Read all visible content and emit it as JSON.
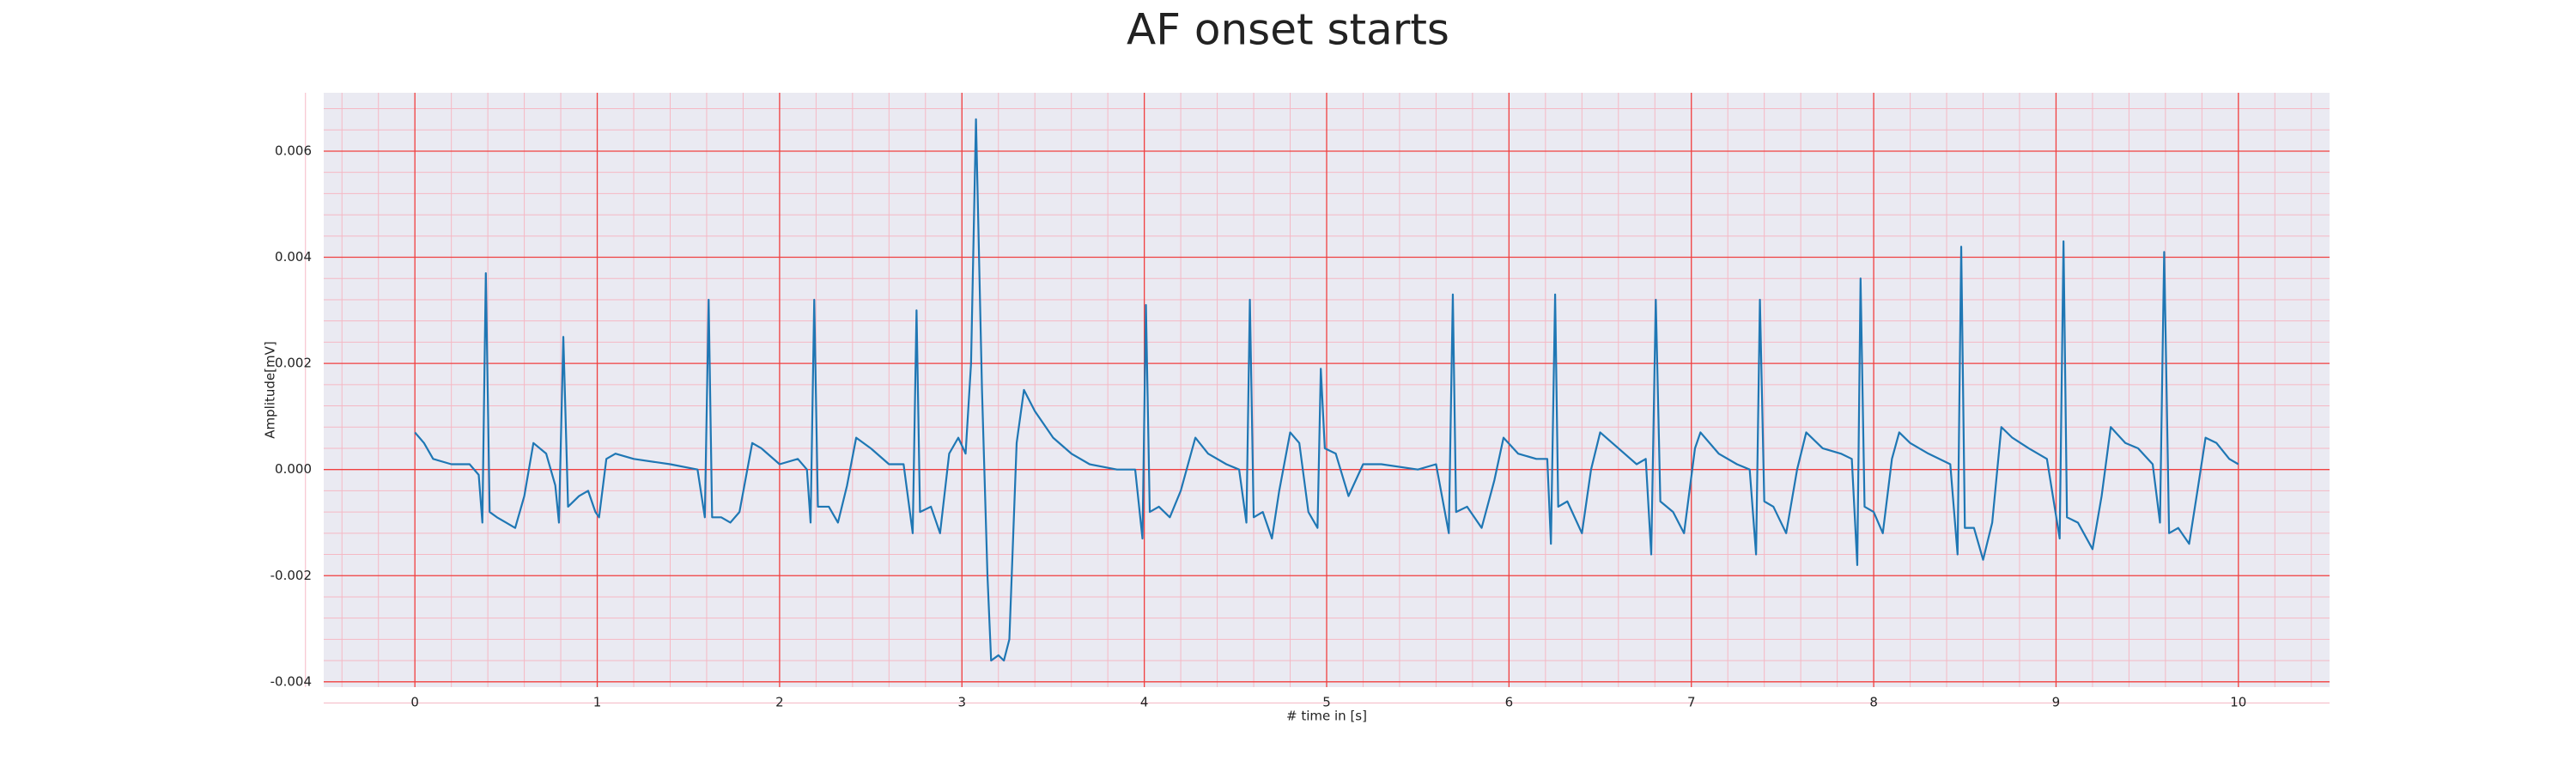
{
  "chart_data": {
    "type": "line",
    "title": "AF onset starts",
    "xlabel": "# time in [s]",
    "ylabel": "Amplitude[mV]",
    "xlim": [
      -0.5,
      10.5
    ],
    "ylim": [
      -0.0041,
      0.0071
    ],
    "xticks": [
      0,
      1,
      2,
      3,
      4,
      5,
      6,
      7,
      8,
      9,
      10
    ],
    "yticks": [
      {
        "value": -0.004,
        "label": "-0.004"
      },
      {
        "value": -0.002,
        "label": "-0.002"
      },
      {
        "value": 0,
        "label": "0.000"
      },
      {
        "value": 0.002,
        "label": "0.002"
      },
      {
        "value": 0.004,
        "label": "0.004"
      },
      {
        "value": 0.006,
        "label": "0.006"
      }
    ],
    "grid": true,
    "minor_grid": true,
    "grid_color": "#f04040",
    "minor_grid_color": "#f5b8c4",
    "background": "#eaeaf2",
    "x": [
      0,
      0.05,
      0.1,
      0.2,
      0.3,
      0.35,
      0.37,
      0.389,
      0.41,
      0.45,
      0.5,
      0.55,
      0.6,
      0.65,
      0.72,
      0.77,
      0.79,
      0.814,
      0.84,
      0.9,
      0.95,
      0.99,
      1.01,
      1.05,
      1.1,
      1.2,
      1.4,
      1.55,
      1.59,
      1.611,
      1.63,
      1.68,
      1.73,
      1.78,
      1.85,
      1.9,
      2.0,
      2.1,
      2.15,
      2.17,
      2.19,
      2.21,
      2.27,
      2.32,
      2.37,
      2.42,
      2.5,
      2.6,
      2.68,
      2.73,
      2.751,
      2.77,
      2.83,
      2.88,
      2.93,
      2.98,
      3.02,
      3.05,
      3.077,
      3.11,
      3.14,
      3.16,
      3.2,
      3.23,
      3.26,
      3.3,
      3.34,
      3.4,
      3.5,
      3.6,
      3.7,
      3.85,
      3.95,
      3.99,
      4.009,
      4.03,
      4.08,
      4.14,
      4.2,
      4.28,
      4.35,
      4.45,
      4.52,
      4.56,
      4.579,
      4.6,
      4.65,
      4.7,
      4.74,
      4.8,
      4.85,
      4.9,
      4.95,
      4.968,
      4.99,
      5.05,
      5.12,
      5.2,
      5.3,
      5.5,
      5.6,
      5.67,
      5.692,
      5.71,
      5.77,
      5.85,
      5.92,
      5.97,
      6.05,
      6.15,
      6.21,
      6.23,
      6.253,
      6.27,
      6.32,
      6.4,
      6.45,
      6.5,
      6.6,
      6.7,
      6.75,
      6.78,
      6.805,
      6.83,
      6.9,
      6.96,
      7.02,
      7.05,
      7.15,
      7.25,
      7.32,
      7.355,
      7.376,
      7.4,
      7.45,
      7.52,
      7.58,
      7.63,
      7.72,
      7.82,
      7.88,
      7.91,
      7.928,
      7.95,
      8.0,
      8.05,
      8.1,
      8.14,
      8.2,
      8.3,
      8.42,
      8.46,
      8.48,
      8.5,
      8.55,
      8.6,
      8.65,
      8.7,
      8.76,
      8.85,
      8.95,
      9.02,
      9.041,
      9.06,
      9.12,
      9.2,
      9.25,
      9.3,
      9.38,
      9.45,
      9.53,
      9.57,
      9.593,
      9.62,
      9.67,
      9.73,
      9.78,
      9.82,
      9.88,
      9.95,
      10.0
    ],
    "series": [
      {
        "color": "#1f77b4",
        "values": [
          0.0007,
          0.0005,
          0.0002,
          0.0001,
          0.0001,
          -0.0001,
          -0.001,
          0.0037,
          -0.0008,
          -0.0009,
          -0.001,
          -0.0011,
          -0.0005,
          0.0005,
          0.0003,
          -0.0003,
          -0.001,
          0.0025,
          -0.0007,
          -0.0005,
          -0.0004,
          -0.0008,
          -0.0009,
          0.0002,
          0.0003,
          0.0002,
          0.0001,
          0,
          -0.0009,
          0.0032,
          -0.0009,
          -0.0009,
          -0.001,
          -0.0008,
          0.0005,
          0.0004,
          0.0001,
          0.0002,
          0,
          -0.001,
          0.0032,
          -0.0007,
          -0.0007,
          -0.001,
          -0.0003,
          0.0006,
          0.0004,
          0.0001,
          0.0001,
          -0.0012,
          0.003,
          -0.0008,
          -0.0007,
          -0.0012,
          0.0003,
          0.0006,
          0.0003,
          0.002,
          0.0066,
          0.0015,
          -0.002,
          -0.0036,
          -0.0035,
          -0.0036,
          -0.0032,
          0.0005,
          0.0015,
          0.0011,
          0.0006,
          0.0003,
          0.0001,
          0,
          0,
          -0.0013,
          0.0031,
          -0.0008,
          -0.0007,
          -0.0009,
          -0.0004,
          0.0006,
          0.0003,
          0.0001,
          0,
          -0.001,
          0.0032,
          -0.0009,
          -0.0008,
          -0.0013,
          -0.0004,
          0.0007,
          0.0005,
          -0.0008,
          -0.0011,
          0.0019,
          0.0004,
          0.0003,
          -0.0005,
          0.0001,
          0.0001,
          0,
          0.0001,
          -0.0012,
          0.0033,
          -0.0008,
          -0.0007,
          -0.0011,
          -0.0002,
          0.0006,
          0.0003,
          0.0002,
          0.0002,
          -0.0014,
          0.0033,
          -0.0007,
          -0.0006,
          -0.0012,
          0,
          0.0007,
          0.0004,
          0.0001,
          0.0002,
          -0.0016,
          0.0032,
          -0.0006,
          -0.0008,
          -0.0012,
          0.0004,
          0.0007,
          0.0003,
          0.0001,
          0,
          -0.0016,
          0.0032,
          -0.0006,
          -0.0007,
          -0.0012,
          0,
          0.0007,
          0.0004,
          0.0003,
          0.0002,
          -0.0018,
          0.0036,
          -0.0007,
          -0.0008,
          -0.0012,
          0.0002,
          0.0007,
          0.0005,
          0.0003,
          0.0001,
          -0.0016,
          0.0042,
          -0.0011,
          -0.0011,
          -0.0017,
          -0.001,
          0.0008,
          0.0006,
          0.0004,
          0.0002,
          -0.0013,
          0.0043,
          -0.0009,
          -0.001,
          -0.0015,
          -0.0005,
          0.0008,
          0.0005,
          0.0004,
          0.0001,
          -0.001,
          0.0041,
          -0.0012,
          -0.0011,
          -0.0014,
          -0.0003,
          0.0006,
          0.0005,
          0.0002,
          0.0001
        ]
      }
    ]
  }
}
